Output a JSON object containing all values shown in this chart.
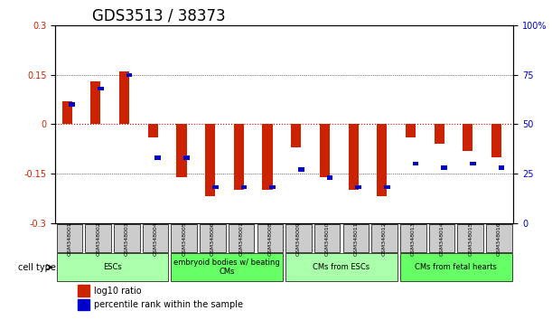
{
  "title": "GDS3513 / 38373",
  "samples": [
    "GSM348001",
    "GSM348002",
    "GSM348003",
    "GSM348004",
    "GSM348005",
    "GSM348006",
    "GSM348007",
    "GSM348008",
    "GSM348009",
    "GSM348010",
    "GSM348011",
    "GSM348012",
    "GSM348013",
    "GSM348014",
    "GSM348015",
    "GSM348016"
  ],
  "log10_ratio": [
    0.07,
    0.13,
    0.16,
    -0.04,
    -0.16,
    -0.22,
    -0.2,
    -0.2,
    -0.07,
    -0.16,
    -0.2,
    -0.22,
    -0.04,
    -0.06,
    -0.08,
    -0.1
  ],
  "percentile_rank": [
    60,
    68,
    75,
    33,
    33,
    18,
    18,
    18,
    27,
    23,
    18,
    18,
    30,
    28,
    30,
    28
  ],
  "ylim_left": [
    -0.3,
    0.3
  ],
  "ylim_right": [
    0,
    100
  ],
  "yticks_left": [
    -0.3,
    -0.15,
    0,
    0.15,
    0.3
  ],
  "yticks_right": [
    0,
    25,
    50,
    75,
    100
  ],
  "ytick_labels_right": [
    "0",
    "25",
    "50",
    "75",
    "100%"
  ],
  "cell_type_groups": [
    {
      "label": "ESCs",
      "start": 0,
      "end": 3,
      "color": "#aaffaa"
    },
    {
      "label": "embryoid bodies w/ beating\nCMs",
      "start": 4,
      "end": 7,
      "color": "#66ff66"
    },
    {
      "label": "CMs from ESCs",
      "start": 8,
      "end": 11,
      "color": "#aaffaa"
    },
    {
      "label": "CMs from fetal hearts",
      "start": 12,
      "end": 15,
      "color": "#66ff66"
    }
  ],
  "bar_color_red": "#cc2200",
  "bar_color_blue": "#0000cc",
  "zero_line_color": "#cc0000",
  "grid_color": "#000000",
  "bg_color": "#ffffff",
  "title_fontsize": 12,
  "tick_fontsize": 7,
  "label_fontsize": 8
}
